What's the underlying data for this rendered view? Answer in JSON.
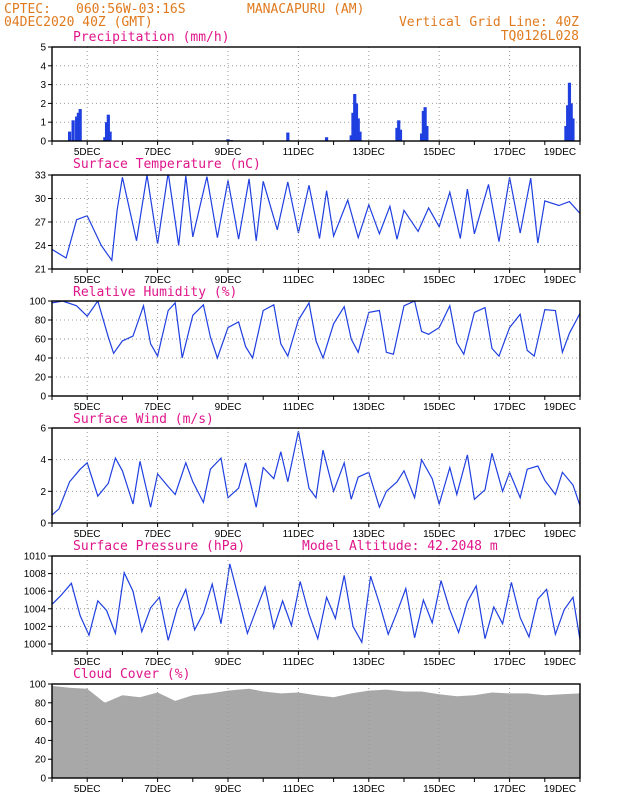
{
  "header": {
    "center_label": "CPTEC:",
    "coords": "060:56W-03:16S",
    "location": "MANACAPURU (AM)",
    "init_time": "04DEC2020 40Z (GMT)",
    "grid_note": "Vertical Grid Line: 40Z",
    "model_id": "TQ0126L028"
  },
  "colors": {
    "header_text": "#e07a1f",
    "panel_title": "#e0168a",
    "series_line": "#1f3fe0",
    "cloud_fill": "#a8a8a8",
    "grid": "#9a9a9a"
  },
  "x_axis": {
    "labels": [
      "5DEC",
      "7DEC",
      "9DEC",
      "11DEC",
      "13DEC",
      "15DEC",
      "17DEC",
      "19DEC"
    ],
    "range_days": [
      4.0,
      19.0
    ]
  },
  "chart_data": [
    {
      "type": "bar",
      "title": "Precipitation (mm/h)",
      "ylim": [
        0,
        5
      ],
      "yticks": [
        "0",
        "1",
        "2",
        "3",
        "4",
        "5"
      ],
      "grid": true,
      "series": [
        {
          "values": [
            [
              4.5,
              0.5
            ],
            [
              4.6,
              1.1
            ],
            [
              4.7,
              1.3
            ],
            [
              4.75,
              1.5
            ],
            [
              4.8,
              1.7
            ],
            [
              5.5,
              0.2
            ],
            [
              5.55,
              1.0
            ],
            [
              5.6,
              1.4
            ],
            [
              5.65,
              0.5
            ],
            [
              9.0,
              0.1
            ],
            [
              9.1,
              0.05
            ],
            [
              10.7,
              0.45
            ],
            [
              11.8,
              0.2
            ],
            [
              12.5,
              0.3
            ],
            [
              12.55,
              1.5
            ],
            [
              12.6,
              2.5
            ],
            [
              12.65,
              2.0
            ],
            [
              12.7,
              1.2
            ],
            [
              12.75,
              0.5
            ],
            [
              13.8,
              0.7
            ],
            [
              13.85,
              1.1
            ],
            [
              13.9,
              0.6
            ],
            [
              14.5,
              0.4
            ],
            [
              14.55,
              1.6
            ],
            [
              14.6,
              1.8
            ],
            [
              14.65,
              0.8
            ],
            [
              18.6,
              0.8
            ],
            [
              18.65,
              1.9
            ],
            [
              18.7,
              3.1
            ],
            [
              18.75,
              2.0
            ],
            [
              18.8,
              1.2
            ]
          ]
        }
      ]
    },
    {
      "type": "line",
      "title": "Surface Temperature (nC)",
      "ylim": [
        21,
        33
      ],
      "yticks": [
        "21",
        "24",
        "27",
        "30",
        "33"
      ],
      "grid": true,
      "series": [
        {
          "x": [
            4.0,
            4.4,
            4.7,
            5.0,
            5.4,
            5.7,
            5.85,
            6.0,
            6.4,
            6.7,
            7.0,
            7.3,
            7.6,
            7.8,
            8.0,
            8.4,
            8.7,
            9.0,
            9.3,
            9.6,
            9.8,
            10.0,
            10.4,
            10.7,
            11.0,
            11.3,
            11.6,
            11.8,
            12.0,
            12.4,
            12.7,
            13.0,
            13.3,
            13.6,
            13.8,
            14.0,
            14.4,
            14.7,
            15.0,
            15.3,
            15.6,
            15.8,
            16.0,
            16.4,
            16.7,
            17.0,
            17.3,
            17.6,
            17.8,
            18.0,
            18.4,
            18.7,
            19.0
          ],
          "values": [
            23.5,
            22.4,
            27.3,
            27.8,
            24.0,
            22.1,
            28.5,
            32.7,
            24.6,
            33.0,
            24.2,
            33.3,
            24.0,
            32.9,
            25.1,
            32.8,
            25.0,
            32.3,
            24.8,
            32.5,
            24.6,
            32.2,
            26.0,
            32.1,
            25.6,
            31.7,
            24.9,
            31.0,
            25.2,
            29.8,
            25.0,
            29.2,
            25.5,
            29.0,
            24.8,
            28.5,
            25.8,
            28.8,
            26.4,
            30.8,
            24.9,
            31.2,
            25.5,
            31.8,
            24.5,
            32.7,
            25.6,
            32.6,
            24.3,
            29.7,
            29.1,
            29.6,
            28.1
          ]
        }
      ]
    },
    {
      "type": "line",
      "title": "Relative Humidity (%)",
      "ylim": [
        0,
        100
      ],
      "yticks": [
        "0",
        "20",
        "40",
        "60",
        "80",
        "100"
      ],
      "grid": true,
      "series": [
        {
          "x": [
            4.0,
            4.3,
            4.7,
            5.0,
            5.3,
            5.6,
            5.75,
            6.0,
            6.3,
            6.6,
            6.8,
            7.0,
            7.3,
            7.5,
            7.7,
            8.0,
            8.3,
            8.5,
            8.7,
            9.0,
            9.3,
            9.5,
            9.7,
            10.0,
            10.3,
            10.5,
            10.7,
            11.0,
            11.3,
            11.5,
            11.7,
            12.0,
            12.3,
            12.5,
            12.7,
            13.0,
            13.3,
            13.5,
            13.7,
            14.0,
            14.3,
            14.5,
            14.7,
            15.0,
            15.3,
            15.5,
            15.7,
            16.0,
            16.3,
            16.5,
            16.7,
            17.0,
            17.3,
            17.5,
            17.7,
            18.0,
            18.3,
            18.5,
            18.7,
            19.0
          ],
          "values": [
            98,
            100,
            95,
            84,
            100,
            62,
            45,
            58,
            63,
            95,
            55,
            42,
            90,
            98,
            40,
            85,
            96,
            62,
            40,
            72,
            78,
            52,
            40,
            90,
            96,
            55,
            42,
            80,
            98,
            58,
            40,
            76,
            94,
            60,
            46,
            88,
            90,
            46,
            44,
            95,
            100,
            68,
            65,
            72,
            95,
            56,
            44,
            88,
            93,
            50,
            42,
            72,
            86,
            48,
            42,
            91,
            90,
            46,
            66,
            87
          ]
        }
      ]
    },
    {
      "type": "line",
      "title": "Surface Wind (m/s)",
      "ylim": [
        0,
        6
      ],
      "yticks": [
        "0",
        "2",
        "4",
        "6"
      ],
      "grid": true,
      "series": [
        {
          "x": [
            4.0,
            4.2,
            4.5,
            4.8,
            5.0,
            5.3,
            5.6,
            5.8,
            6.0,
            6.3,
            6.5,
            6.8,
            7.0,
            7.3,
            7.5,
            7.8,
            8.0,
            8.3,
            8.5,
            8.8,
            9.0,
            9.3,
            9.5,
            9.8,
            10.0,
            10.3,
            10.5,
            10.7,
            11.0,
            11.3,
            11.5,
            11.7,
            12.0,
            12.3,
            12.5,
            12.7,
            13.0,
            13.3,
            13.5,
            13.8,
            14.0,
            14.3,
            14.5,
            14.8,
            15.0,
            15.3,
            15.5,
            15.8,
            16.0,
            16.3,
            16.5,
            16.8,
            17.0,
            17.3,
            17.5,
            17.8,
            18.0,
            18.3,
            18.5,
            18.8,
            19.0
          ],
          "values": [
            0.5,
            0.9,
            2.6,
            3.4,
            3.8,
            1.7,
            2.5,
            4.1,
            3.3,
            1.2,
            3.9,
            1.0,
            3.1,
            2.3,
            1.8,
            3.8,
            2.6,
            1.3,
            3.4,
            4.1,
            1.6,
            2.2,
            3.8,
            1.0,
            3.5,
            2.8,
            4.5,
            2.6,
            5.8,
            2.2,
            1.6,
            4.6,
            2.0,
            3.8,
            1.5,
            2.9,
            3.2,
            1.0,
            2.0,
            2.6,
            3.3,
            1.6,
            4.0,
            2.8,
            1.2,
            3.5,
            1.8,
            4.3,
            1.5,
            2.1,
            4.4,
            2.0,
            3.2,
            1.6,
            3.4,
            3.6,
            2.7,
            1.8,
            3.2,
            2.4,
            1.1
          ]
        }
      ]
    },
    {
      "type": "line",
      "title": "Surface Pressure (hPa)",
      "annotation": "Model Altitude: 42.2048 m",
      "ylim": [
        999.2,
        1010
      ],
      "yticks": [
        "1000",
        "1002",
        "1004",
        "1006",
        "1008",
        "1010"
      ],
      "grid": true,
      "series": [
        {
          "x": [
            4.0,
            4.25,
            4.55,
            4.8,
            5.05,
            5.3,
            5.55,
            5.8,
            6.05,
            6.3,
            6.55,
            6.8,
            7.05,
            7.3,
            7.55,
            7.8,
            8.05,
            8.3,
            8.55,
            8.8,
            9.05,
            9.3,
            9.55,
            9.8,
            10.05,
            10.3,
            10.55,
            10.8,
            11.05,
            11.3,
            11.55,
            11.8,
            12.05,
            12.3,
            12.55,
            12.8,
            13.05,
            13.3,
            13.55,
            13.8,
            14.05,
            14.3,
            14.55,
            14.8,
            15.05,
            15.3,
            15.55,
            15.8,
            16.05,
            16.3,
            16.55,
            16.8,
            17.05,
            17.3,
            17.55,
            17.8,
            18.05,
            18.3,
            18.55,
            18.8,
            19.0
          ],
          "values": [
            1004.5,
            1005.5,
            1006.9,
            1003.2,
            1001.0,
            1004.9,
            1003.8,
            1001.2,
            1008.1,
            1006.0,
            1001.4,
            1004.1,
            1005.3,
            1000.4,
            1004.0,
            1006.2,
            1001.6,
            1003.5,
            1006.8,
            1002.3,
            1009.1,
            1005.2,
            1001.2,
            1003.9,
            1006.5,
            1001.8,
            1004.9,
            1002.1,
            1007.1,
            1003.4,
            1000.6,
            1005.3,
            1002.9,
            1007.8,
            1002.0,
            1000.2,
            1007.7,
            1004.6,
            1001.1,
            1003.6,
            1006.3,
            1000.7,
            1005.0,
            1002.4,
            1007.2,
            1003.9,
            1001.3,
            1004.8,
            1006.6,
            1000.6,
            1004.2,
            1002.3,
            1007.0,
            1003.0,
            1000.8,
            1005.1,
            1006.2,
            1001.1,
            1003.9,
            1005.3,
            1000.5
          ]
        }
      ]
    },
    {
      "type": "area",
      "title": "Cloud Cover (%)",
      "ylim": [
        0,
        100
      ],
      "yticks": [
        "0",
        "20",
        "40",
        "60",
        "80",
        "100"
      ],
      "grid": true,
      "series": [
        {
          "x": [
            4.0,
            4.5,
            5.0,
            5.5,
            6.0,
            6.5,
            7.0,
            7.5,
            8.0,
            8.5,
            9.0,
            9.3,
            9.6,
            10.0,
            10.5,
            11.0,
            11.5,
            12.0,
            12.5,
            13.0,
            13.5,
            14.0,
            14.5,
            15.0,
            15.5,
            16.0,
            16.5,
            17.0,
            17.5,
            18.0,
            18.5,
            19.0
          ],
          "values": [
            98,
            96,
            95,
            80,
            88,
            86,
            91,
            82,
            88,
            90,
            93,
            94,
            95,
            92,
            90,
            91,
            88,
            86,
            90,
            93,
            94,
            92,
            92,
            89,
            87,
            88,
            91,
            90,
            90,
            88,
            89,
            90
          ]
        }
      ]
    }
  ],
  "panels": [
    {
      "title": "Precipitation (mm/h)"
    },
    {
      "title": "Surface Temperature (nC)"
    },
    {
      "title": "Relative Humidity (%)"
    },
    {
      "title": "Surface Wind (m/s)"
    },
    {
      "title": "Surface Pressure (hPa)",
      "annotation": "Model Altitude: 42.2048 m"
    },
    {
      "title": "Cloud Cover (%)"
    }
  ]
}
